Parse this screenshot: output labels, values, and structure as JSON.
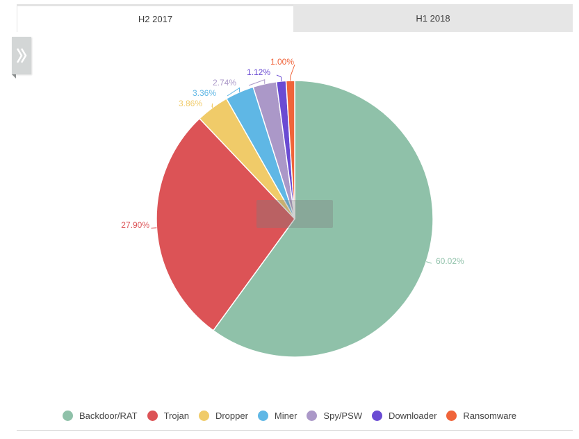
{
  "tabs": [
    {
      "label": "H2 2017",
      "active": true
    },
    {
      "label": "H1 2018",
      "active": false
    }
  ],
  "side_toggle": {
    "icon": "double-chevron-right-icon"
  },
  "chart_data": {
    "type": "pie",
    "title": "",
    "start_angle_deg": 0,
    "direction": "clockwise",
    "slices": [
      {
        "label": "Backdoor/RAT",
        "value": 60.02,
        "display": "60.02%",
        "color": "#8fc1a9"
      },
      {
        "label": "Trojan",
        "value": 27.9,
        "display": "27.90%",
        "color": "#dc5356"
      },
      {
        "label": "Dropper",
        "value": 3.86,
        "display": "3.86%",
        "color": "#f0cb69"
      },
      {
        "label": "Miner",
        "value": 3.36,
        "display": "3.36%",
        "color": "#5fb7e5"
      },
      {
        "label": "Spy/PSW",
        "value": 2.74,
        "display": "2.74%",
        "color": "#ab98c8"
      },
      {
        "label": "Downloader",
        "value": 1.12,
        "display": "1.12%",
        "color": "#6a4bd3"
      },
      {
        "label": "Ransomware",
        "value": 1.0,
        "display": "1.00%",
        "color": "#f0643a"
      }
    ],
    "legend_position": "bottom"
  }
}
